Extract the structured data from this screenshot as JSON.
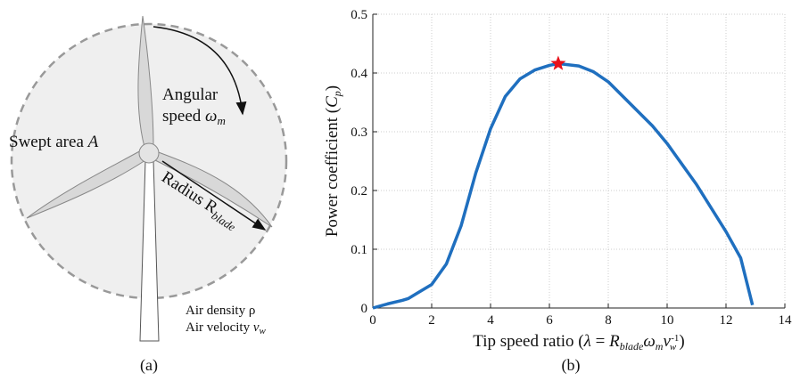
{
  "diagram": {
    "swept": [
      "Swept area ",
      "A"
    ],
    "angular": [
      "Angular",
      "speed ",
      "ω",
      "m"
    ],
    "radius": [
      "Radius R",
      "blade"
    ],
    "density": "Air density ρ",
    "velocity": [
      "Air velocity ",
      "v",
      "w"
    ],
    "caption": "(a)"
  },
  "chart_data": {
    "type": "line",
    "caption": "(b)",
    "ylabel": [
      "Power coefficient (",
      "C",
      "p",
      ")"
    ],
    "xlabel": [
      "Tip speed ratio (",
      "λ",
      " = ",
      "R",
      "blade",
      "ω",
      "m",
      "v",
      "w",
      "-1",
      ")"
    ],
    "xlim": [
      0,
      14
    ],
    "ylim": [
      0,
      0.5
    ],
    "xticks": [
      0,
      2,
      4,
      6,
      8,
      10,
      12,
      14
    ],
    "yticks": [
      0,
      0.1,
      0.2,
      0.3,
      0.4,
      0.5
    ],
    "grid": true,
    "series": [
      {
        "color": "#1f6fbf",
        "x": [
          0,
          0.5,
          1,
          1.2,
          1.5,
          2,
          2.5,
          3,
          3.5,
          4,
          4.5,
          5,
          5.5,
          6,
          6.3,
          7,
          7.5,
          8,
          8.5,
          9,
          9.5,
          10,
          10.5,
          11,
          11.5,
          12,
          12.5,
          12.9
        ],
        "values": [
          0,
          0.007,
          0.013,
          0.016,
          0.025,
          0.04,
          0.075,
          0.14,
          0.23,
          0.305,
          0.36,
          0.39,
          0.405,
          0.413,
          0.416,
          0.412,
          0.402,
          0.385,
          0.36,
          0.335,
          0.31,
          0.28,
          0.245,
          0.21,
          0.17,
          0.13,
          0.085,
          0.005
        ]
      }
    ],
    "marker": {
      "x": 6.3,
      "y": 0.416,
      "color": "#e8101a"
    }
  }
}
